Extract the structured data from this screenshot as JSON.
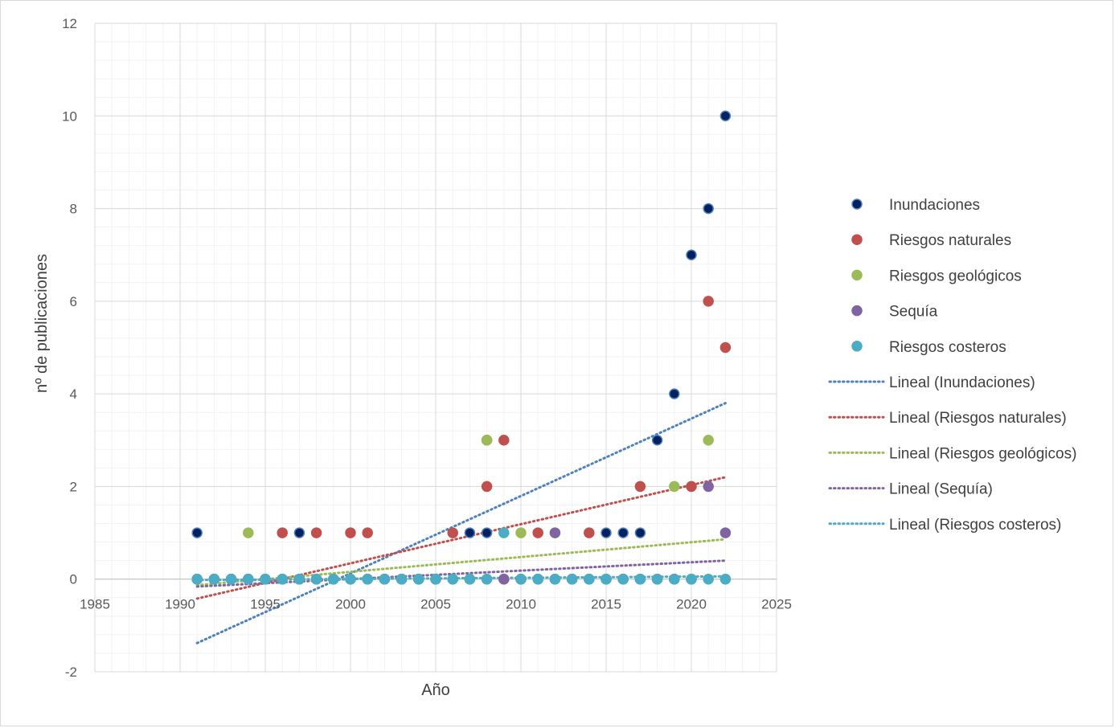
{
  "chart_data": {
    "type": "scatter",
    "title": "",
    "xlabel": "Año",
    "ylabel": "nº de publicaciones",
    "xlim": [
      1985,
      2025
    ],
    "ylim": [
      -2,
      12
    ],
    "x_ticks": [
      "1985",
      "1990",
      "1995",
      "2000",
      "2005",
      "2010",
      "2015",
      "2020",
      "2025"
    ],
    "y_ticks": [
      "-2",
      "0",
      "2",
      "4",
      "6",
      "8",
      "10",
      "12"
    ],
    "x_tick_values": [
      1985,
      1990,
      1995,
      2000,
      2005,
      2010,
      2015,
      2020,
      2025
    ],
    "y_tick_values": [
      -2,
      0,
      2,
      4,
      6,
      8,
      10,
      12
    ],
    "x_minor_step": 1,
    "y_minor_step": 0.4,
    "grid": true,
    "legend_position": "right",
    "series": [
      {
        "name": "Inundaciones",
        "color": "#002060",
        "points": [
          [
            1991,
            1
          ],
          [
            1992,
            0
          ],
          [
            1993,
            0
          ],
          [
            1994,
            0
          ],
          [
            1995,
            0
          ],
          [
            1996,
            0
          ],
          [
            1997,
            1
          ],
          [
            1998,
            0
          ],
          [
            1999,
            0
          ],
          [
            2000,
            0
          ],
          [
            2001,
            0
          ],
          [
            2002,
            0
          ],
          [
            2003,
            0
          ],
          [
            2004,
            0
          ],
          [
            2005,
            0
          ],
          [
            2006,
            0
          ],
          [
            2007,
            1
          ],
          [
            2008,
            1
          ],
          [
            2009,
            0
          ],
          [
            2010,
            0
          ],
          [
            2011,
            0
          ],
          [
            2012,
            0
          ],
          [
            2013,
            0
          ],
          [
            2014,
            0
          ],
          [
            2015,
            1
          ],
          [
            2016,
            1
          ],
          [
            2017,
            1
          ],
          [
            2018,
            3
          ],
          [
            2019,
            4
          ],
          [
            2020,
            7
          ],
          [
            2021,
            8
          ],
          [
            2022,
            10
          ]
        ]
      },
      {
        "name": "Riesgos naturales",
        "color": "#c0504d",
        "points": [
          [
            1991,
            0
          ],
          [
            1992,
            0
          ],
          [
            1993,
            0
          ],
          [
            1994,
            0
          ],
          [
            1995,
            0
          ],
          [
            1996,
            1
          ],
          [
            1997,
            0
          ],
          [
            1998,
            1
          ],
          [
            1999,
            0
          ],
          [
            2000,
            1
          ],
          [
            2001,
            1
          ],
          [
            2002,
            0
          ],
          [
            2003,
            0
          ],
          [
            2004,
            0
          ],
          [
            2005,
            0
          ],
          [
            2006,
            1
          ],
          [
            2007,
            0
          ],
          [
            2008,
            2
          ],
          [
            2008,
            3
          ],
          [
            2009,
            3
          ],
          [
            2010,
            0
          ],
          [
            2011,
            1
          ],
          [
            2012,
            0
          ],
          [
            2013,
            0
          ],
          [
            2014,
            1
          ],
          [
            2015,
            0
          ],
          [
            2016,
            0
          ],
          [
            2017,
            2
          ],
          [
            2018,
            0
          ],
          [
            2019,
            0
          ],
          [
            2020,
            2
          ],
          [
            2021,
            6
          ],
          [
            2022,
            5
          ]
        ]
      },
      {
        "name": "Riesgos geológicos",
        "color": "#9bbb59",
        "points": [
          [
            1991,
            0
          ],
          [
            1992,
            0
          ],
          [
            1993,
            0
          ],
          [
            1994,
            1
          ],
          [
            1995,
            0
          ],
          [
            1996,
            0
          ],
          [
            1997,
            0
          ],
          [
            1998,
            0
          ],
          [
            1999,
            0
          ],
          [
            2000,
            0
          ],
          [
            2001,
            0
          ],
          [
            2002,
            0
          ],
          [
            2003,
            0
          ],
          [
            2004,
            0
          ],
          [
            2005,
            0
          ],
          [
            2006,
            0
          ],
          [
            2007,
            0
          ],
          [
            2008,
            3
          ],
          [
            2009,
            0
          ],
          [
            2010,
            1
          ],
          [
            2011,
            0
          ],
          [
            2012,
            0
          ],
          [
            2013,
            0
          ],
          [
            2014,
            0
          ],
          [
            2015,
            0
          ],
          [
            2016,
            0
          ],
          [
            2017,
            0
          ],
          [
            2018,
            0
          ],
          [
            2019,
            2
          ],
          [
            2020,
            0
          ],
          [
            2021,
            3
          ],
          [
            2022,
            0
          ]
        ]
      },
      {
        "name": "Sequía",
        "color": "#8064a2",
        "points": [
          [
            1991,
            0
          ],
          [
            1992,
            0
          ],
          [
            1993,
            0
          ],
          [
            1994,
            0
          ],
          [
            1995,
            0
          ],
          [
            1996,
            0
          ],
          [
            1997,
            0
          ],
          [
            1998,
            0
          ],
          [
            1999,
            0
          ],
          [
            2000,
            0
          ],
          [
            2001,
            0
          ],
          [
            2002,
            0
          ],
          [
            2003,
            0
          ],
          [
            2004,
            0
          ],
          [
            2005,
            0
          ],
          [
            2006,
            0
          ],
          [
            2007,
            0
          ],
          [
            2008,
            0
          ],
          [
            2009,
            0
          ],
          [
            2010,
            0
          ],
          [
            2011,
            0
          ],
          [
            2012,
            1
          ],
          [
            2013,
            0
          ],
          [
            2014,
            0
          ],
          [
            2015,
            0
          ],
          [
            2016,
            0
          ],
          [
            2017,
            0
          ],
          [
            2018,
            0
          ],
          [
            2019,
            0
          ],
          [
            2020,
            0
          ],
          [
            2021,
            2
          ],
          [
            2022,
            1
          ]
        ]
      },
      {
        "name": "Riesgos costeros",
        "color": "#4bacc6",
        "points": [
          [
            1991,
            0
          ],
          [
            1992,
            0
          ],
          [
            1993,
            0
          ],
          [
            1994,
            0
          ],
          [
            1995,
            0
          ],
          [
            1996,
            0
          ],
          [
            1997,
            0
          ],
          [
            1998,
            0
          ],
          [
            1999,
            0
          ],
          [
            2000,
            0
          ],
          [
            2001,
            0
          ],
          [
            2002,
            0
          ],
          [
            2003,
            0
          ],
          [
            2004,
            0
          ],
          [
            2005,
            0
          ],
          [
            2006,
            0
          ],
          [
            2007,
            0
          ],
          [
            2008,
            0
          ],
          [
            2009,
            1
          ],
          [
            2010,
            0
          ],
          [
            2011,
            0
          ],
          [
            2012,
            0
          ],
          [
            2013,
            0
          ],
          [
            2014,
            0
          ],
          [
            2015,
            0
          ],
          [
            2016,
            0
          ],
          [
            2017,
            0
          ],
          [
            2018,
            0
          ],
          [
            2019,
            0
          ],
          [
            2020,
            0
          ],
          [
            2021,
            0
          ],
          [
            2022,
            0
          ]
        ]
      }
    ],
    "trendlines": [
      {
        "name": "Lineal (Inundaciones)",
        "color": "#4f81bd",
        "from": [
          1991,
          -1.38
        ],
        "to": [
          2022,
          3.8
        ]
      },
      {
        "name": "Lineal (Riesgos naturales)",
        "color": "#c0504d",
        "from": [
          1991,
          -0.42
        ],
        "to": [
          2022,
          2.2
        ]
      },
      {
        "name": "Lineal (Riesgos geológicos)",
        "color": "#9bbb59",
        "from": [
          1991,
          -0.13
        ],
        "to": [
          2022,
          0.86
        ]
      },
      {
        "name": "Lineal (Sequía)",
        "color": "#8064a2",
        "from": [
          1991,
          -0.16
        ],
        "to": [
          2022,
          0.4
        ]
      },
      {
        "name": "Lineal (Riesgos costeros)",
        "color": "#4bacc6",
        "from": [
          1991,
          -0.02
        ],
        "to": [
          2022,
          0.06
        ]
      }
    ]
  }
}
